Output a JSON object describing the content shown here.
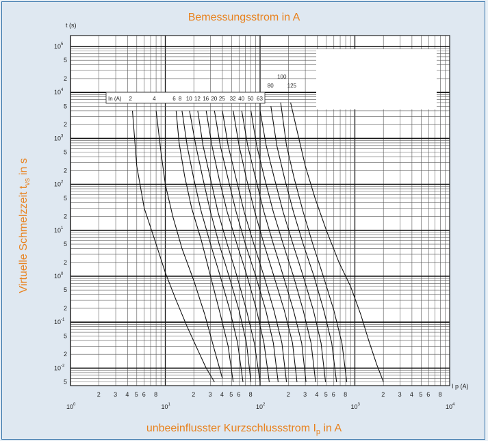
{
  "chart_data": {
    "type": "line",
    "title": "Bemessungsstrom in A",
    "xlabel": "unbeeinflusster Kurzschlussstrom I",
    "xlabel_sub": "p",
    "xlabel_suffix": " in A",
    "ylabel": "Virtuelle Schmelzzeit t",
    "ylabel_sub": "vs",
    "ylabel_suffix": " in s",
    "y_axis_symbol": "t (s)",
    "x_axis_symbol": "I p (A)",
    "in_label": "In (A)",
    "x_scale": "log",
    "y_scale": "log",
    "xlim": [
      1,
      10000
    ],
    "ylim": [
      0.004,
      100000
    ],
    "grid": true,
    "x_decade_labels": [
      {
        "base": "10",
        "exp": "0",
        "x": 1
      },
      {
        "base": "10",
        "exp": "1",
        "x": 10
      },
      {
        "base": "10",
        "exp": "2",
        "x": 100
      },
      {
        "base": "10",
        "exp": "3",
        "x": 1000
      },
      {
        "base": "10",
        "exp": "4",
        "x": 10000
      }
    ],
    "x_minor_labels": [
      "2",
      "3",
      "4",
      "5",
      "6",
      "8"
    ],
    "y_decade_labels": [
      {
        "base": "10",
        "exp": "5",
        "y": 100000
      },
      {
        "base": "10",
        "exp": "4",
        "y": 10000
      },
      {
        "base": "10",
        "exp": "3",
        "y": 1000
      },
      {
        "base": "10",
        "exp": "2",
        "y": 100
      },
      {
        "base": "10",
        "exp": "1",
        "y": 10
      },
      {
        "base": "10",
        "exp": "0",
        "y": 1
      },
      {
        "base": "10",
        "exp": "-1",
        "y": 0.1
      },
      {
        "base": "10",
        "exp": "-2",
        "y": 0.01
      }
    ],
    "y_minor_labels": [
      "2",
      "5"
    ],
    "series": [
      {
        "name": "2",
        "x": [
          4.5,
          5,
          6,
          8,
          10,
          13,
          17,
          22,
          27,
          33
        ],
        "y": [
          4000,
          250,
          30,
          5,
          1.2,
          0.3,
          0.08,
          0.025,
          0.01,
          0.005
        ]
      },
      {
        "name": "4",
        "x": [
          8,
          9,
          10,
          12,
          15,
          20,
          26,
          33,
          40
        ],
        "y": [
          4000,
          500,
          100,
          20,
          4,
          0.8,
          0.15,
          0.025,
          0.006
        ]
      },
      {
        "name": "6",
        "x": [
          13,
          14,
          16,
          19,
          24,
          30,
          38,
          46,
          52
        ],
        "y": [
          4000,
          800,
          150,
          30,
          6,
          1,
          0.15,
          0.03,
          0.005
        ]
      },
      {
        "name": "8",
        "x": [
          15,
          17,
          20,
          24,
          30,
          38,
          48,
          58,
          66
        ],
        "y": [
          4000,
          700,
          130,
          25,
          5,
          1,
          0.18,
          0.035,
          0.005
        ]
      },
      {
        "name": "10",
        "x": [
          18,
          21,
          25,
          30,
          37,
          47,
          60,
          72,
          80
        ],
        "y": [
          4000,
          700,
          130,
          25,
          5,
          1,
          0.18,
          0.035,
          0.005
        ]
      },
      {
        "name": "12",
        "x": [
          22,
          25,
          30,
          36,
          45,
          57,
          72,
          87,
          100
        ],
        "y": [
          4000,
          700,
          130,
          25,
          5,
          1,
          0.18,
          0.035,
          0.005
        ]
      },
      {
        "name": "16",
        "x": [
          27,
          31,
          37,
          45,
          57,
          73,
          92,
          110,
          125
        ],
        "y": [
          4000,
          700,
          130,
          25,
          5,
          1,
          0.18,
          0.035,
          0.005
        ]
      },
      {
        "name": "20",
        "x": [
          33,
          38,
          46,
          56,
          70,
          90,
          115,
          138,
          155
        ],
        "y": [
          4000,
          700,
          130,
          25,
          5,
          1,
          0.18,
          0.035,
          0.005
        ]
      },
      {
        "name": "25",
        "x": [
          40,
          46,
          56,
          68,
          86,
          110,
          140,
          170,
          190
        ],
        "y": [
          4000,
          700,
          130,
          25,
          5,
          1,
          0.18,
          0.035,
          0.005
        ]
      },
      {
        "name": "32",
        "x": [
          52,
          60,
          72,
          88,
          110,
          140,
          180,
          220,
          245
        ],
        "y": [
          4000,
          700,
          130,
          25,
          5,
          1,
          0.18,
          0.035,
          0.005
        ]
      },
      {
        "name": "40",
        "x": [
          64,
          74,
          90,
          110,
          138,
          176,
          225,
          275,
          305
        ],
        "y": [
          4000,
          700,
          130,
          25,
          5,
          1,
          0.18,
          0.035,
          0.005
        ]
      },
      {
        "name": "50",
        "x": [
          80,
          92,
          112,
          138,
          175,
          225,
          285,
          345,
          385
        ],
        "y": [
          4000,
          700,
          130,
          25,
          5,
          1,
          0.18,
          0.035,
          0.005
        ]
      },
      {
        "name": "63",
        "x": [
          100,
          116,
          142,
          175,
          222,
          285,
          365,
          440,
          490
        ],
        "y": [
          4000,
          700,
          130,
          25,
          5,
          1,
          0.18,
          0.035,
          0.005
        ]
      },
      {
        "name": "80",
        "x": [
          130,
          150,
          182,
          225,
          285,
          370,
          470,
          570,
          640
        ],
        "y": [
          5000,
          700,
          130,
          25,
          5,
          1,
          0.18,
          0.035,
          0.005
        ]
      },
      {
        "name": "100",
        "x": [
          165,
          190,
          230,
          285,
          360,
          465,
          600,
          730,
          820
        ],
        "y": [
          6000,
          700,
          130,
          25,
          5,
          1,
          0.18,
          0.035,
          0.005
        ]
      },
      {
        "name": "125",
        "x": [
          210,
          245,
          300,
          380,
          500,
          680,
          900,
          1150,
          1400,
          1700,
          2000
        ],
        "y": [
          6000,
          1500,
          250,
          50,
          10,
          2,
          0.6,
          0.15,
          0.04,
          0.012,
          0.005
        ]
      }
    ],
    "legend": "none"
  }
}
